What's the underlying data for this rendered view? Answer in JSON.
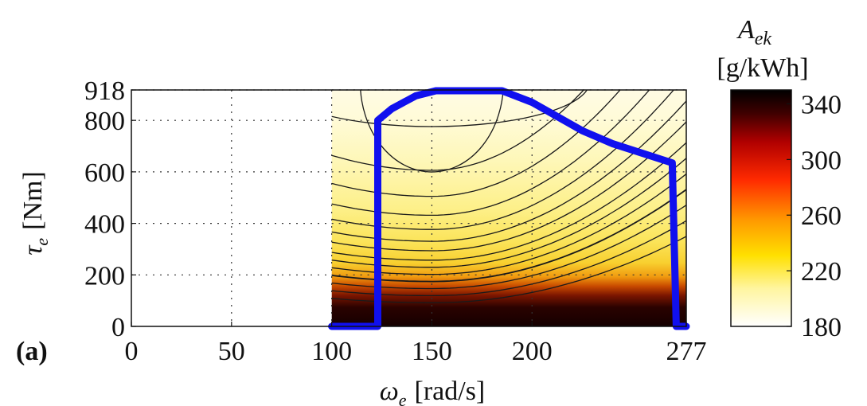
{
  "panel_label": "(a)",
  "chart_data": {
    "type": "heatmap",
    "x": {
      "label_symbol": "ω",
      "label_sub": "e",
      "label_unit": "[rad/s]",
      "ticks": [
        0,
        50,
        100,
        150,
        200,
        277
      ],
      "tick_labels": [
        "0",
        "50",
        "100",
        "150",
        "200",
        "277"
      ],
      "range": [
        0,
        277
      ],
      "grid": true
    },
    "y": {
      "label_symbol": "τ",
      "label_sub": "e",
      "label_unit": "[Nm]",
      "ticks": [
        0,
        200,
        400,
        600,
        800,
        918
      ],
      "tick_labels": [
        "0",
        "200",
        "400",
        "600",
        "800",
        "918"
      ],
      "range": [
        0,
        918
      ],
      "grid": true
    },
    "map_x_range": [
      100,
      277
    ],
    "colorbar": {
      "title_symbol": "A",
      "title_sub": "ek",
      "title_unit": "[g/kWh]",
      "ticks": [
        180,
        220,
        260,
        300,
        340
      ],
      "tick_labels": [
        "180",
        "220",
        "260",
        "300",
        "340"
      ],
      "range": [
        180,
        350
      ],
      "colors": [
        "#ffffff",
        "#fff5a0",
        "#ffe000",
        "#ff9900",
        "#ff3300",
        "#cc0000",
        "#000000"
      ]
    },
    "max_torque_curve": {
      "color": "#1010ee",
      "points": [
        [
          100,
          0
        ],
        [
          123,
          0
        ],
        [
          123,
          800
        ],
        [
          130,
          845
        ],
        [
          142,
          895
        ],
        [
          152,
          915
        ],
        [
          185,
          915
        ],
        [
          200,
          870
        ],
        [
          225,
          760
        ],
        [
          240,
          710
        ],
        [
          262,
          655
        ],
        [
          270,
          635
        ],
        [
          272,
          0
        ],
        [
          277,
          0
        ]
      ]
    },
    "contour_levels_approx": [
      {
        "base": 0.1,
        "thick": false
      },
      {
        "base": 0.13,
        "thick": false
      },
      {
        "base": 0.16,
        "thick": false
      },
      {
        "base": 0.19,
        "thick": true
      },
      {
        "base": 0.22,
        "thick": false
      },
      {
        "base": 0.25,
        "thick": false
      },
      {
        "base": 0.28,
        "thick": false
      },
      {
        "base": 0.32,
        "thick": false
      },
      {
        "base": 0.36,
        "thick": false
      },
      {
        "base": 0.41,
        "thick": false
      },
      {
        "base": 0.47,
        "thick": false
      },
      {
        "base": 0.55,
        "thick": false
      },
      {
        "base": 0.66,
        "thick": false
      }
    ]
  }
}
